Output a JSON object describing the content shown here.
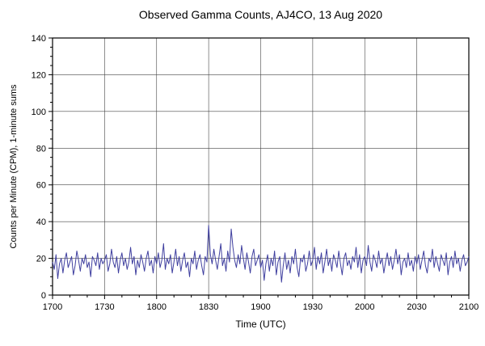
{
  "chart_data": {
    "type": "line",
    "title": "Observed Gamma Counts, AJ4CO, 13 Aug 2020",
    "xlabel": "Time (UTC)",
    "ylabel": "Counts per Minute (CPM), 1-minute sums",
    "xlim": [
      0,
      240
    ],
    "ylim": [
      0,
      140
    ],
    "x_tick_interval": 30,
    "x_minor_interval": 10,
    "y_minor_interval": 5,
    "x_tick_labels": [
      "1700",
      "1730",
      "1800",
      "1830",
      "1900",
      "1930",
      "2000",
      "2030",
      "2100"
    ],
    "y_ticks": [
      0,
      20,
      40,
      60,
      80,
      100,
      120,
      140
    ],
    "grid": true,
    "grid_color": "#444444",
    "line_color": "#3f3f9f",
    "axis_color": "#000000",
    "values": [
      18,
      14,
      22,
      9,
      17,
      20,
      12,
      19,
      23,
      15,
      18,
      21,
      11,
      16,
      24,
      19,
      13,
      20,
      17,
      22,
      15,
      18,
      10,
      21,
      19,
      16,
      23,
      14,
      20,
      17,
      19,
      22,
      13,
      17,
      25,
      18,
      15,
      21,
      12,
      19,
      23,
      16,
      20,
      14,
      18,
      26,
      17,
      21,
      11,
      19,
      15,
      22,
      18,
      13,
      20,
      24,
      16,
      19,
      12,
      21,
      17,
      23,
      15,
      19,
      28,
      14,
      20,
      17,
      22,
      12,
      18,
      25,
      16,
      21,
      13,
      19,
      23,
      15,
      18,
      10,
      20,
      17,
      24,
      14,
      19,
      22,
      16,
      11,
      21,
      18,
      38,
      22,
      17,
      25,
      19,
      14,
      21,
      28,
      16,
      20,
      13,
      24,
      18,
      36,
      26,
      19,
      15,
      22,
      17,
      27,
      20,
      14,
      23,
      18,
      12,
      21,
      25,
      16,
      19,
      22,
      15,
      19,
      8,
      17,
      22,
      13,
      20,
      16,
      24,
      11,
      18,
      21,
      7,
      16,
      23,
      14,
      19,
      12,
      21,
      17,
      25,
      15,
      10,
      20,
      18,
      22,
      13,
      17,
      24,
      16,
      19,
      26,
      14,
      21,
      17,
      23,
      12,
      18,
      25,
      16,
      20,
      13,
      22,
      19,
      15,
      24,
      17,
      11,
      20,
      23,
      16,
      19,
      14,
      21,
      18,
      26,
      15,
      22,
      12,
      19,
      21,
      16,
      27,
      18,
      13,
      22,
      19,
      15,
      24,
      17,
      20,
      12,
      18,
      23,
      16,
      21,
      14,
      19,
      25,
      17,
      22,
      11,
      18,
      20,
      15,
      23,
      16,
      19,
      13,
      21,
      17,
      22,
      14,
      19,
      24,
      16,
      12,
      20,
      18,
      25,
      15,
      21,
      17,
      13,
      22,
      19,
      16,
      23,
      11,
      18,
      21,
      15,
      24,
      17,
      20,
      13,
      19,
      22,
      16,
      18,
      21
    ]
  }
}
